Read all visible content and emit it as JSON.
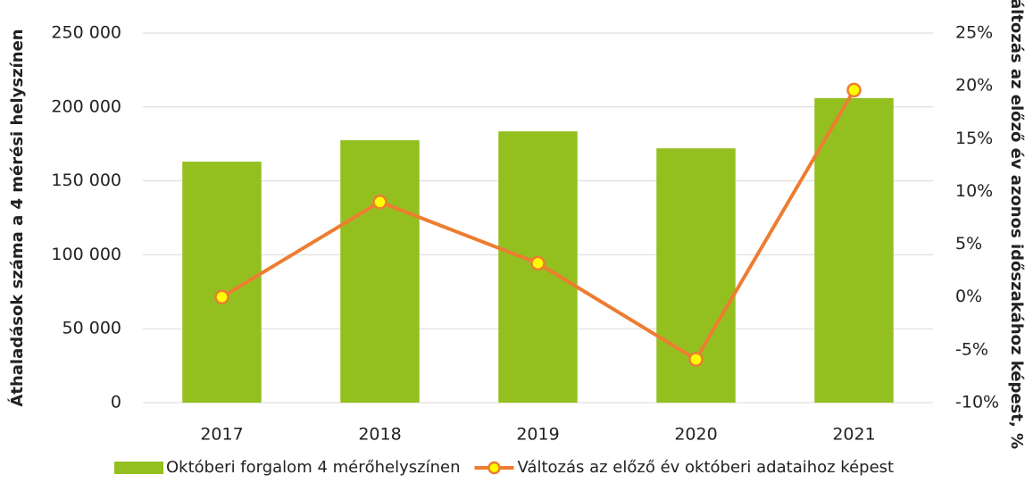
{
  "chart_data": {
    "type": "bar-line",
    "y_label": "Áthaladások száma a 4 mérési helyszínen",
    "y2_label": "Változás az előző év azonos időszakához képest, %",
    "categories": [
      "2017",
      "2018",
      "2019",
      "2020",
      "2021"
    ],
    "series": [
      {
        "name": "Októberi forgalom 4 mérőhelyszínen",
        "type": "bar",
        "color": "#93c01f",
        "values": [
          163000,
          177500,
          183500,
          172000,
          206000
        ]
      },
      {
        "name": "Változás az előző év októberi adataihoz képest",
        "type": "line",
        "axis": "y2",
        "color": "#ed7d31",
        "marker_color": "#ffff00",
        "values": [
          0,
          9.0,
          3.2,
          -5.9,
          19.6
        ]
      }
    ],
    "ylim": [
      0,
      250000
    ],
    "yticks": [
      0,
      {
        "value": 50000,
        "label": "50 000"
      },
      {
        "value": 100000,
        "label": "100 000"
      },
      {
        "value": 150000,
        "label": "150 000"
      },
      {
        "value": 200000,
        "label": "200 000"
      },
      {
        "value": 250000,
        "label": "250 000"
      }
    ],
    "y2lim": [
      -10,
      25
    ],
    "y2ticks": [
      {
        "value": -10,
        "label": "-10%"
      },
      {
        "value": -5,
        "label": "-5%"
      },
      {
        "value": 0,
        "label": "0%"
      },
      {
        "value": 5,
        "label": "5%"
      },
      {
        "value": 10,
        "label": "10%"
      },
      {
        "value": 15,
        "label": "15%"
      },
      {
        "value": 20,
        "label": "20%"
      },
      {
        "value": 25,
        "label": "25%"
      }
    ],
    "grid": true,
    "legend": "bottom"
  }
}
